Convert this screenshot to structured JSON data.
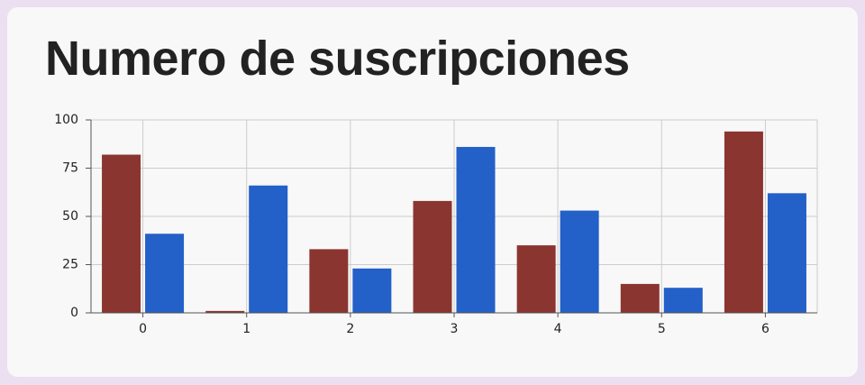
{
  "chart_data": {
    "type": "bar",
    "title": "Numero de suscripciones",
    "xlabel": "",
    "ylabel": "",
    "categories": [
      "0",
      "1",
      "2",
      "3",
      "4",
      "5",
      "6"
    ],
    "series": [
      {
        "values": [
          82,
          1,
          33,
          58,
          35,
          15,
          94
        ],
        "color": "#8b3530"
      },
      {
        "values": [
          41,
          66,
          23,
          86,
          53,
          13,
          62
        ],
        "color": "#2360c8"
      }
    ],
    "ylim": [
      0,
      100
    ],
    "yticks": [
      "0",
      "25",
      "50",
      "75",
      "100"
    ],
    "grid": true,
    "legend": "none"
  }
}
